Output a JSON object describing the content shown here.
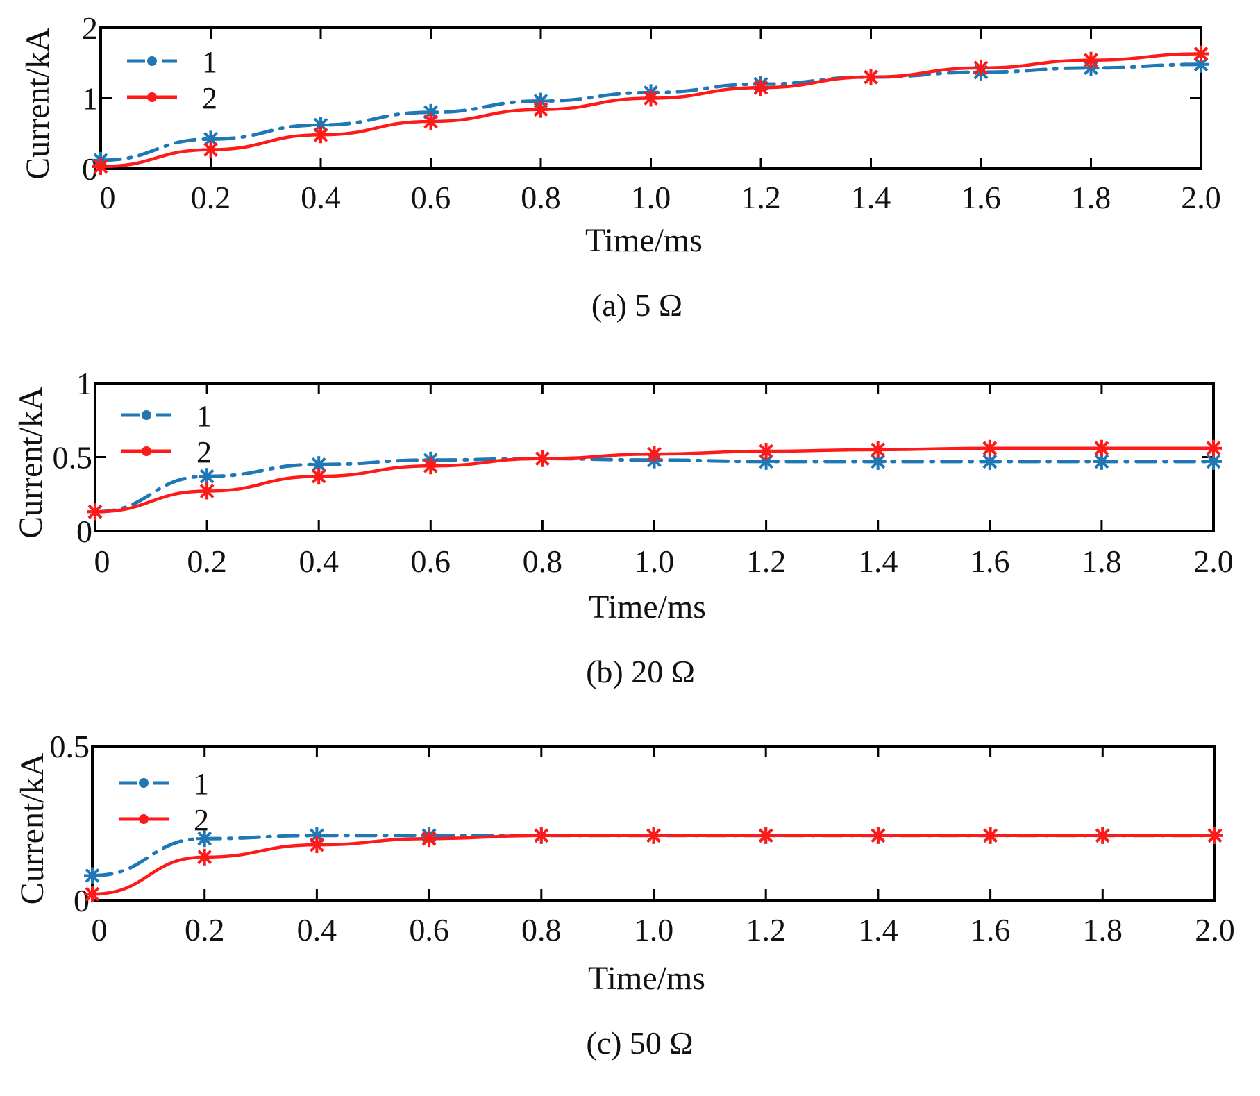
{
  "chart_data": [
    {
      "type": "line",
      "caption": "(a) 5 Ω",
      "xlabel": "Time/ms",
      "ylabel": "Current/kA",
      "xlim": [
        0,
        2.0
      ],
      "ylim": [
        0,
        2
      ],
      "grid": false,
      "legend": "top-left",
      "x_ticks": [
        "0",
        "0.2",
        "0.4",
        "0.6",
        "0.8",
        "1.0",
        "1.2",
        "1.4",
        "1.6",
        "1.8",
        "2.0"
      ],
      "y_ticks": [
        "0",
        "1",
        "2"
      ],
      "x": [
        0,
        0.2,
        0.4,
        0.6,
        0.8,
        1.0,
        1.2,
        1.4,
        1.6,
        1.8,
        2.0
      ],
      "series": [
        {
          "name": "1",
          "color": "#1f77b4",
          "style": "dashdot",
          "marker": "asterisk",
          "values": [
            0.12,
            0.42,
            0.62,
            0.8,
            0.96,
            1.08,
            1.2,
            1.3,
            1.37,
            1.43,
            1.48
          ]
        },
        {
          "name": "2",
          "color": "#ff1a1a",
          "style": "solid",
          "marker": "asterisk",
          "values": [
            0.03,
            0.27,
            0.48,
            0.67,
            0.84,
            1.0,
            1.15,
            1.3,
            1.43,
            1.54,
            1.63
          ]
        }
      ]
    },
    {
      "type": "line",
      "caption": "(b) 20 Ω",
      "xlabel": "Time/ms",
      "ylabel": "Current/kA",
      "xlim": [
        0,
        2.0
      ],
      "ylim": [
        0,
        1
      ],
      "grid": false,
      "legend": "top-left",
      "x_ticks": [
        "0",
        "0.2",
        "0.4",
        "0.6",
        "0.8",
        "1.0",
        "1.2",
        "1.4",
        "1.6",
        "1.8",
        "2.0"
      ],
      "y_ticks": [
        "0",
        "0.5",
        "1"
      ],
      "x": [
        0,
        0.2,
        0.4,
        0.6,
        0.8,
        1.0,
        1.2,
        1.4,
        1.6,
        1.8,
        2.0
      ],
      "series": [
        {
          "name": "1",
          "color": "#1f77b4",
          "style": "dashdot",
          "marker": "asterisk",
          "values": [
            0.13,
            0.37,
            0.45,
            0.48,
            0.49,
            0.48,
            0.47,
            0.47,
            0.47,
            0.47,
            0.47
          ]
        },
        {
          "name": "2",
          "color": "#ff1a1a",
          "style": "solid",
          "marker": "asterisk",
          "values": [
            0.13,
            0.27,
            0.37,
            0.44,
            0.49,
            0.52,
            0.54,
            0.55,
            0.56,
            0.56,
            0.56
          ]
        }
      ]
    },
    {
      "type": "line",
      "caption": "(c) 50 Ω",
      "xlabel": "Time/ms",
      "ylabel": "Current/kA",
      "xlim": [
        0,
        2.0
      ],
      "ylim": [
        0,
        0.5
      ],
      "grid": false,
      "legend": "top-left",
      "x_ticks": [
        "0",
        "0.2",
        "0.4",
        "0.6",
        "0.8",
        "1.0",
        "1.2",
        "1.4",
        "1.6",
        "1.8",
        "2.0"
      ],
      "y_ticks": [
        "0",
        "0.5"
      ],
      "x": [
        0,
        0.2,
        0.4,
        0.6,
        0.8,
        1.0,
        1.2,
        1.4,
        1.6,
        1.8,
        2.0
      ],
      "series": [
        {
          "name": "1",
          "color": "#1f77b4",
          "style": "dashdot",
          "marker": "asterisk",
          "values": [
            0.08,
            0.2,
            0.21,
            0.21,
            0.21,
            0.21,
            0.21,
            0.21,
            0.21,
            0.21,
            0.21
          ]
        },
        {
          "name": "2",
          "color": "#ff1a1a",
          "style": "solid",
          "marker": "asterisk",
          "values": [
            0.02,
            0.14,
            0.18,
            0.2,
            0.21,
            0.21,
            0.21,
            0.21,
            0.21,
            0.21,
            0.21
          ]
        }
      ]
    }
  ]
}
